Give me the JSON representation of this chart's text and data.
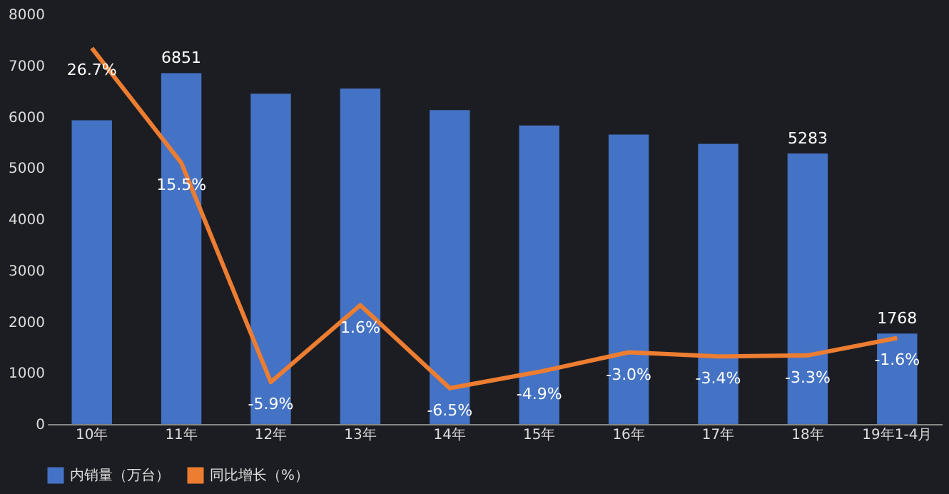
{
  "chart_data": {
    "type": "bar",
    "categories": [
      "10年",
      "11年",
      "12年",
      "13年",
      "14年",
      "15年",
      "16年",
      "17年",
      "18年",
      "19年1-4月"
    ],
    "series": [
      {
        "name": "内销量（万台）",
        "color": "#4472c4",
        "values": [
          5930,
          6851,
          6450,
          6550,
          6130,
          5830,
          5650,
          5470,
          5283,
          1768
        ],
        "value_labels": [
          null,
          "6851",
          null,
          null,
          null,
          null,
          null,
          null,
          "5283",
          "1768"
        ]
      },
      {
        "name": "同比增长（%）",
        "type": "line",
        "axis": "y2",
        "color": "#ed7d31",
        "values": [
          26.7,
          15.5,
          -5.9,
          1.6,
          -6.5,
          -4.9,
          -3.0,
          -3.4,
          -3.3,
          -1.6
        ],
        "value_labels": [
          "26.7%",
          "15.5%",
          "-5.9%",
          "1.6%",
          "-6.5%",
          "-4.9%",
          "-3.0%",
          "-3.4%",
          "-3.3%",
          "-1.6%"
        ]
      }
    ],
    "ylim": [
      0,
      8000
    ],
    "yticks": [
      0,
      1000,
      2000,
      3000,
      4000,
      5000,
      6000,
      7000,
      8000
    ],
    "legend": "bottom",
    "grid": false
  }
}
